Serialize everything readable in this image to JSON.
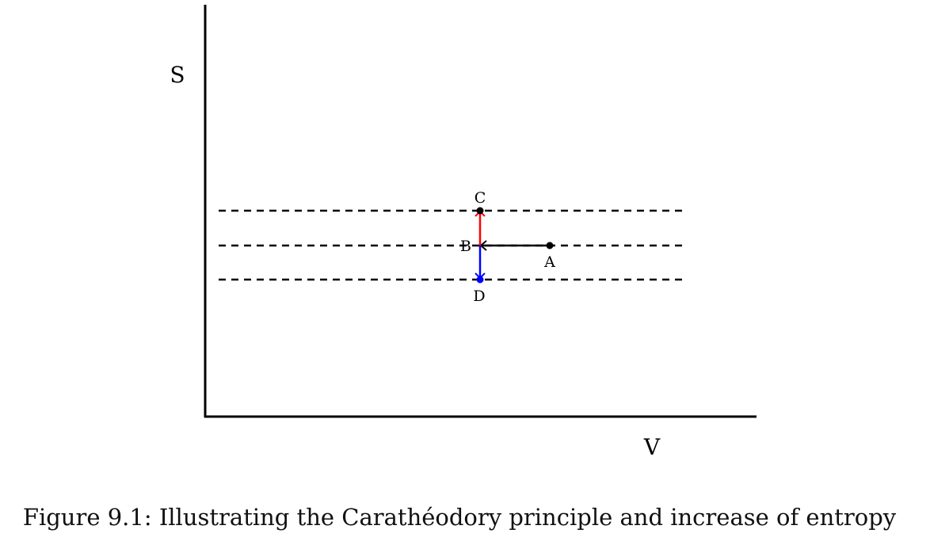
{
  "axes": {
    "y_label": "S",
    "x_label": "V"
  },
  "points": {
    "A": "A",
    "B": "B",
    "C": "C",
    "D": "D"
  },
  "colors": {
    "axis": "#000000",
    "a_to_b": "#000000",
    "b_to_c": "#ff0000",
    "b_to_d": "#0000ff"
  },
  "caption": "Figure 9.1: Illustrating the Carathéodory principle and increase of entropy"
}
